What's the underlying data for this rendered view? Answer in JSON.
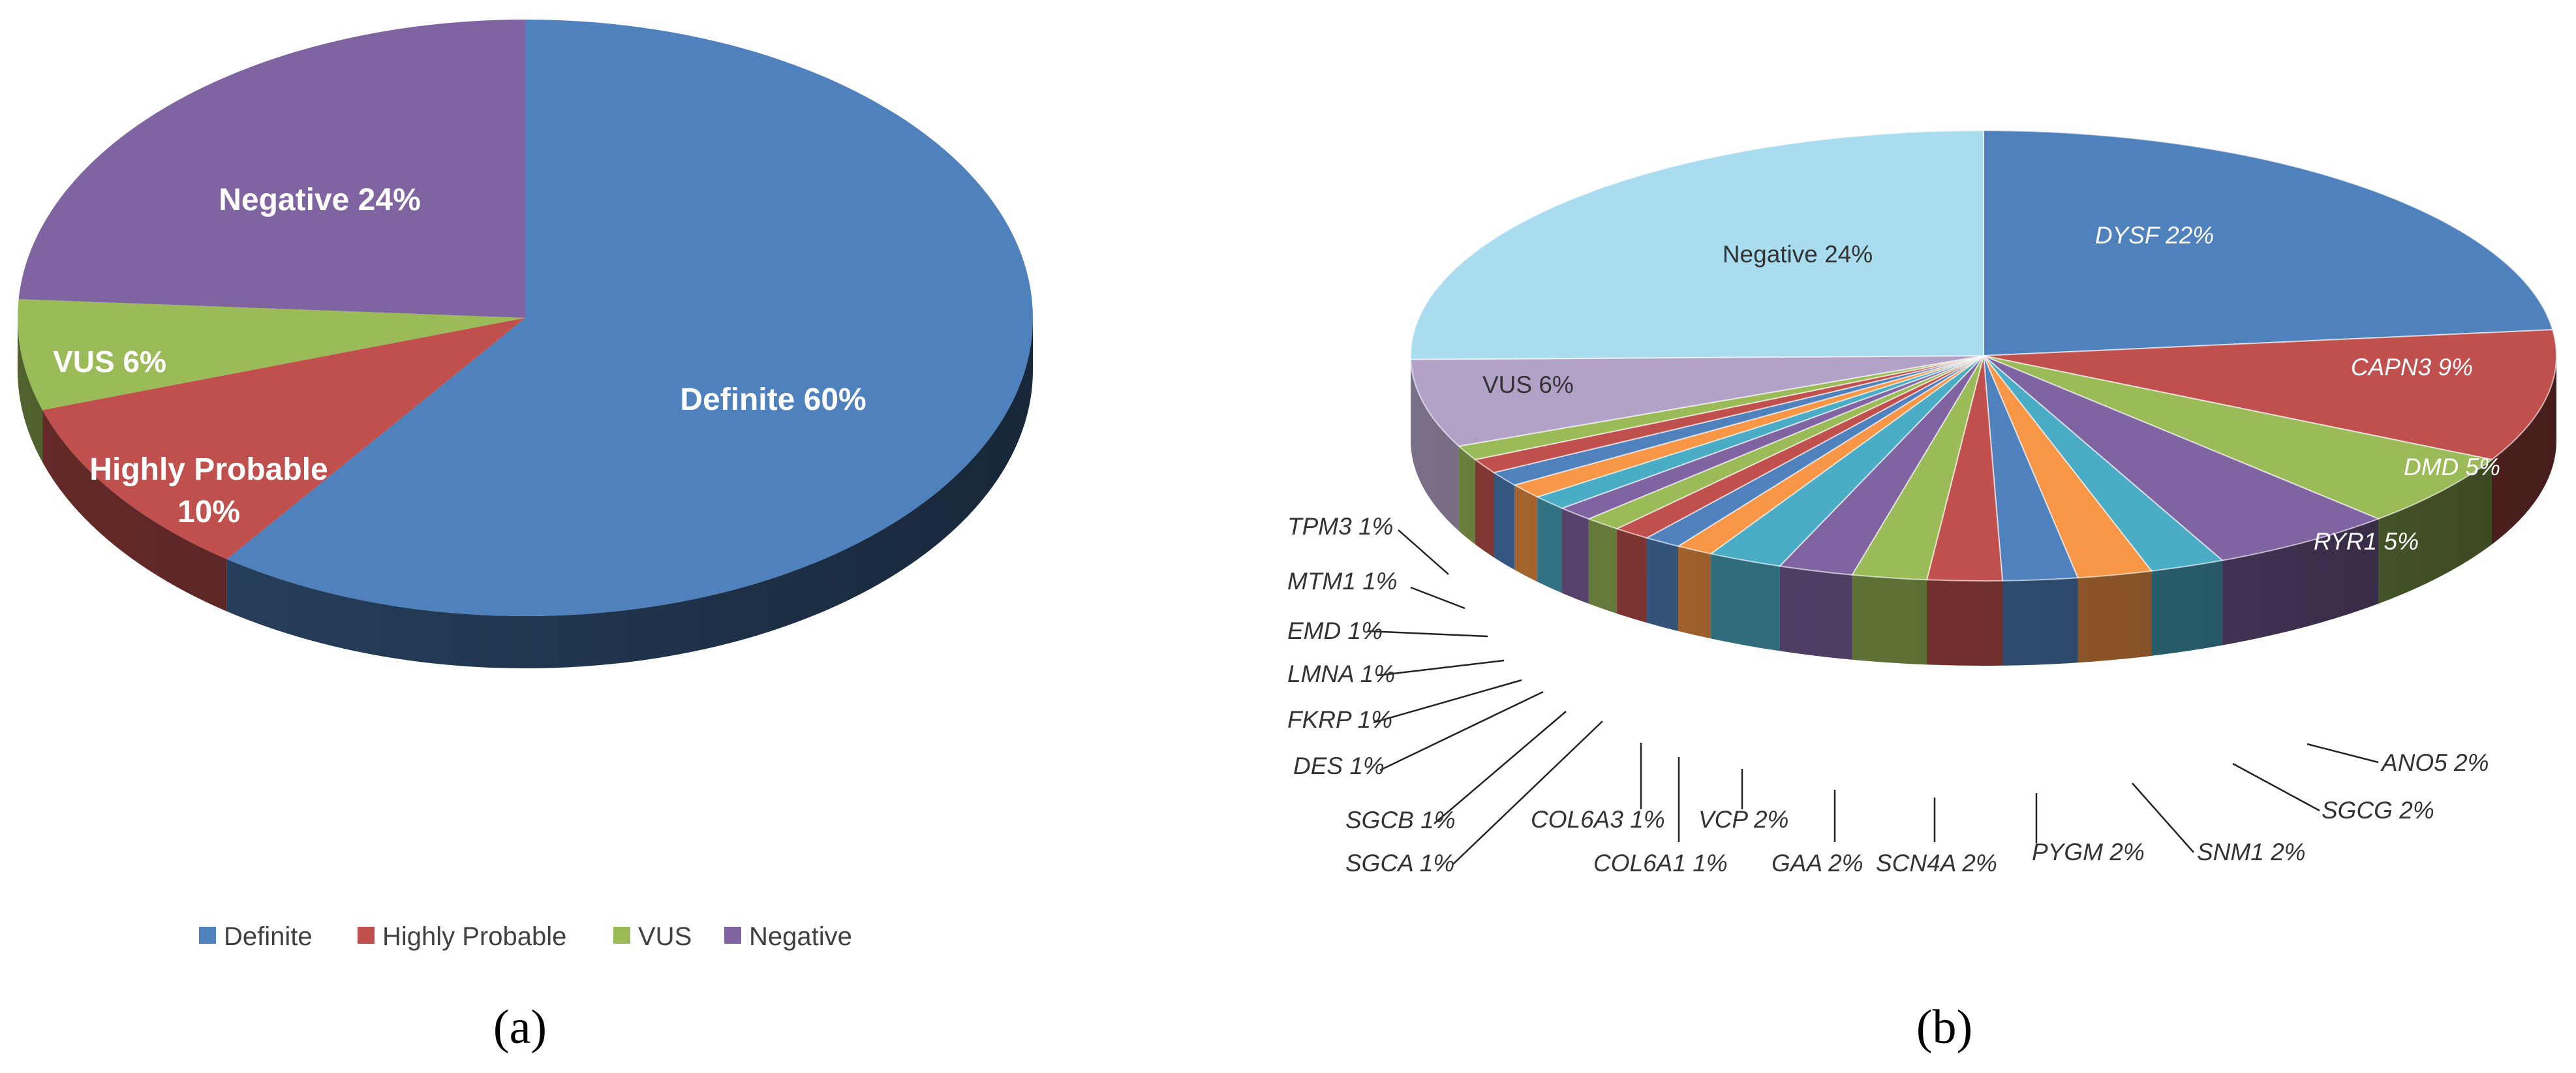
{
  "chart_data": [
    {
      "type": "pie",
      "panel_label": "(a)",
      "categories": [
        "Definite",
        "Highly Probable",
        "VUS",
        "Negative"
      ],
      "values": [
        60,
        10,
        6,
        24
      ],
      "unit": "%",
      "slice_labels": [
        "Definite 60%",
        "Highly Probable",
        "VUS 6%",
        "Negative 24%"
      ],
      "slice_label_line2": [
        "",
        "10%",
        "",
        ""
      ],
      "colors": [
        "#4f81bd",
        "#c0504d",
        "#9bbb59",
        "#8064a2"
      ],
      "legend": [
        "Definite",
        "Highly Probable",
        "VUS",
        "Negative"
      ],
      "legend_position": "bottom"
    },
    {
      "type": "pie",
      "panel_label": "(b)",
      "categories": [
        "DYSF",
        "CAPN3",
        "DMD",
        "RYR1",
        "ANO5",
        "SGCG",
        "SNM1",
        "PYGM",
        "SCN4A",
        "GAA",
        "VCP",
        "COL6A1",
        "COL6A3",
        "SGCA",
        "SGCB",
        "DES",
        "FKRP",
        "LMNA",
        "EMD",
        "MTM1",
        "TPM3",
        "VUS",
        "Negative"
      ],
      "values": [
        22,
        9,
        5,
        5,
        2,
        2,
        2,
        2,
        2,
        2,
        2,
        1,
        1,
        1,
        1,
        1,
        1,
        1,
        1,
        1,
        1,
        6,
        24
      ],
      "unit": "%",
      "labels": [
        "DYSF 22%",
        "CAPN3 9%",
        "DMD 5%",
        "RYR1 5%",
        "ANO5 2%",
        "SGCG 2%",
        "SNM1 2%",
        "PYGM 2%",
        "SCN4A 2%",
        "GAA 2%",
        "VCP 2%",
        "COL6A1 1%",
        "COL6A3 1%",
        "SGCA 1%",
        "SGCB 1%",
        "DES 1%",
        "FKRP 1%",
        "LMNA 1%",
        "EMD 1%",
        "MTM1 1%",
        "TPM3 1%",
        "VUS 6%",
        "Negative 24%"
      ],
      "colors": [
        "#4f81bd",
        "#c0504d",
        "#9bbb59",
        "#8064a2",
        "#4bacc6",
        "#f79646",
        "#4f81bd",
        "#c0504d",
        "#9bbb59",
        "#8064a2",
        "#4bacc6",
        "#f79646",
        "#4f81bd",
        "#c0504d",
        "#9bbb59",
        "#8064a2",
        "#4bacc6",
        "#f79646",
        "#4f81bd",
        "#c0504d",
        "#9bbb59",
        "#b3a2c7",
        "#a9dcef"
      ]
    }
  ]
}
